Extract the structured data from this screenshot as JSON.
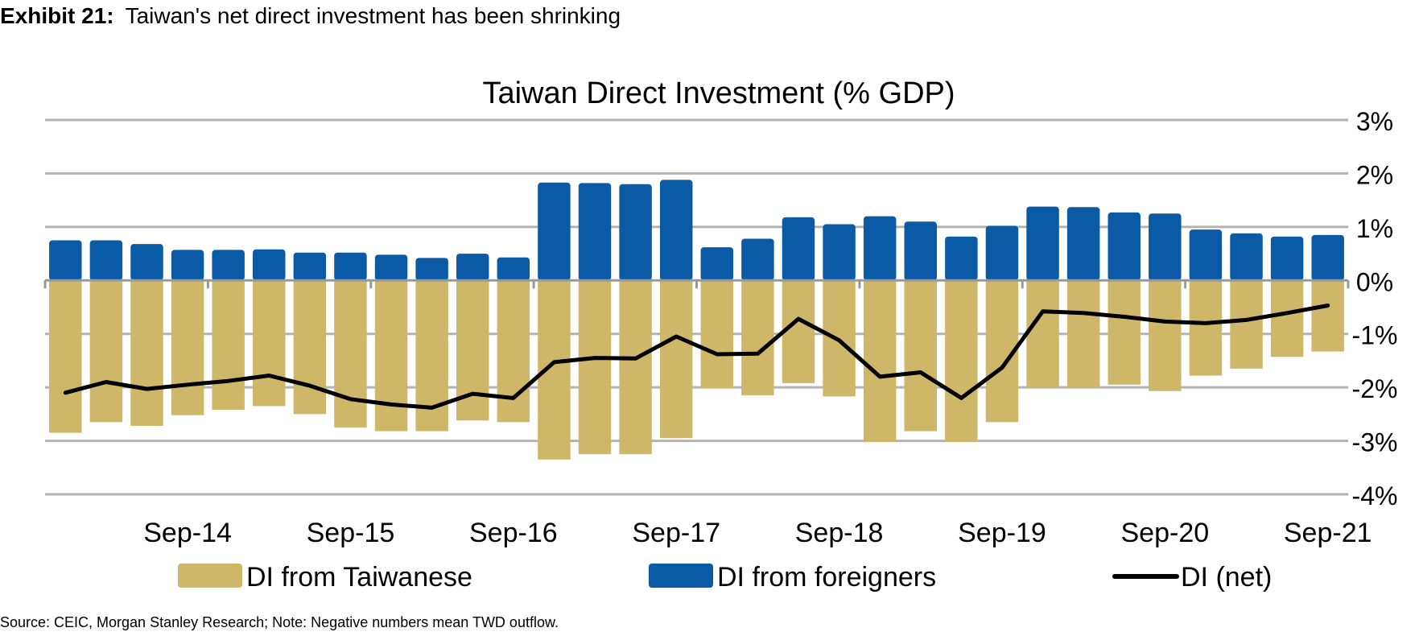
{
  "header": {
    "exhibit_label": "Exhibit 21:",
    "exhibit_title": "Taiwan's net direct investment has been shrinking"
  },
  "footer": {
    "source": "Source: CEIC, Morgan Stanley Research; Note: Negative numbers mean TWD outflow."
  },
  "colors": {
    "taiwanese": "#cfb76a",
    "foreigners": "#0b5aa5",
    "net": "#000000",
    "grid": "#b3b3b3"
  },
  "chart_data": {
    "type": "bar",
    "title": "Taiwan Direct Investment (% GDP)",
    "ylim": [
      -4,
      3
    ],
    "y_ticks": [
      3,
      2,
      1,
      0,
      -1,
      -2,
      -3,
      -4
    ],
    "y_tick_labels": [
      "3%",
      "2%",
      "1%",
      "0%",
      "-1%",
      "-2%",
      "-3%",
      "-4%"
    ],
    "y_axis_position": "right",
    "grid": true,
    "legend_position": "bottom",
    "categories": [
      "Dec-13",
      "Mar-14",
      "Jun-14",
      "Sep-14",
      "Dec-14",
      "Mar-15",
      "Jun-15",
      "Sep-15",
      "Dec-15",
      "Mar-16",
      "Jun-16",
      "Sep-16",
      "Dec-16",
      "Mar-17",
      "Jun-17",
      "Sep-17",
      "Dec-17",
      "Mar-18",
      "Jun-18",
      "Sep-18",
      "Dec-18",
      "Mar-19",
      "Jun-19",
      "Sep-19",
      "Dec-19",
      "Mar-20",
      "Jun-20",
      "Sep-20",
      "Dec-20",
      "Mar-21",
      "Jun-21",
      "Sep-21"
    ],
    "x_tick_labels": [
      {
        "index": 3,
        "label": "Sep-14"
      },
      {
        "index": 7,
        "label": "Sep-15"
      },
      {
        "index": 11,
        "label": "Sep-16"
      },
      {
        "index": 15,
        "label": "Sep-17"
      },
      {
        "index": 19,
        "label": "Sep-18"
      },
      {
        "index": 23,
        "label": "Sep-19"
      },
      {
        "index": 27,
        "label": "Sep-20"
      },
      {
        "index": 31,
        "label": "Sep-21"
      }
    ],
    "series": [
      {
        "name": "DI from Taiwanese",
        "kind": "bar",
        "values": [
          -2.85,
          -2.65,
          -2.72,
          -2.52,
          -2.42,
          -2.35,
          -2.5,
          -2.75,
          -2.82,
          -2.82,
          -2.62,
          -2.65,
          -3.35,
          -3.25,
          -3.25,
          -2.95,
          -2.02,
          -2.15,
          -1.92,
          -2.17,
          -3.02,
          -2.82,
          -3.02,
          -2.65,
          -2.0,
          -2.0,
          -1.95,
          -2.07,
          -1.78,
          -1.65,
          -1.43,
          -1.33
        ]
      },
      {
        "name": "DI from foreigners",
        "kind": "bar",
        "values": [
          0.75,
          0.75,
          0.68,
          0.57,
          0.57,
          0.58,
          0.52,
          0.52,
          0.48,
          0.42,
          0.5,
          0.43,
          1.83,
          1.82,
          1.8,
          1.88,
          0.62,
          0.78,
          1.18,
          1.05,
          1.2,
          1.1,
          0.82,
          1.02,
          1.38,
          1.37,
          1.27,
          1.25,
          0.95,
          0.88,
          0.82,
          0.85
        ]
      },
      {
        "name": "DI (net)",
        "kind": "line",
        "values": [
          -2.1,
          -1.9,
          -2.03,
          -1.95,
          -1.88,
          -1.78,
          -1.97,
          -2.22,
          -2.32,
          -2.38,
          -2.12,
          -2.2,
          -1.53,
          -1.45,
          -1.46,
          -1.05,
          -1.38,
          -1.37,
          -0.72,
          -1.12,
          -1.8,
          -1.72,
          -2.2,
          -1.63,
          -0.58,
          -0.61,
          -0.68,
          -0.77,
          -0.8,
          -0.74,
          -0.61,
          -0.47
        ]
      }
    ]
  }
}
